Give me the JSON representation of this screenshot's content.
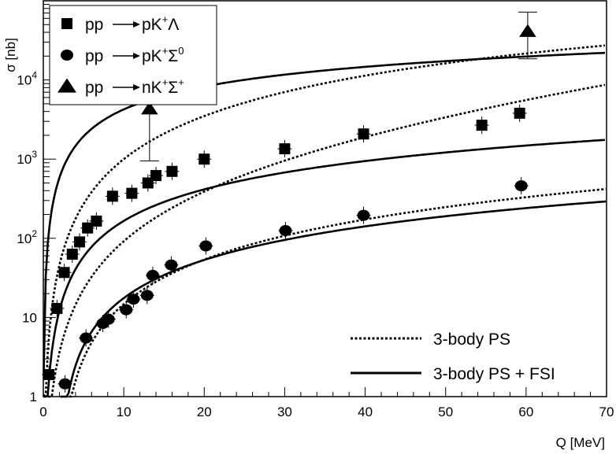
{
  "chart_data": {
    "type": "scatter",
    "title": "",
    "xlabel": "Q [MeV]",
    "ylabel": "σ [nb]",
    "xlim": [
      0,
      70
    ],
    "ylim": [
      1,
      100000
    ],
    "yscale": "log",
    "x_ticks": [
      "0",
      "10",
      "20",
      "30",
      "40",
      "50",
      "60",
      "70"
    ],
    "y_ticks": [
      {
        "value": 1,
        "label": "1"
      },
      {
        "value": 10,
        "label": "10"
      },
      {
        "value": 100,
        "label": "10",
        "sup": "2"
      },
      {
        "value": 1000,
        "label": "10",
        "sup": "3"
      },
      {
        "value": 10000,
        "label": "10",
        "sup": "4"
      }
    ],
    "grid": false,
    "legend_position": "top-left",
    "series": [
      {
        "name": "pp→pK⁺Λ",
        "reaction": {
          "lhs": "pp",
          "rhs": "pK",
          "sup1": "+",
          "rest": "Λ",
          "sup2": ""
        },
        "marker": "square",
        "points": [
          {
            "x": 0.7,
            "y": 1.9
          },
          {
            "x": 1.7,
            "y": 13
          },
          {
            "x": 2.6,
            "y": 37
          },
          {
            "x": 3.6,
            "y": 63
          },
          {
            "x": 4.5,
            "y": 90
          },
          {
            "x": 5.5,
            "y": 135
          },
          {
            "x": 6.6,
            "y": 165
          },
          {
            "x": 8.6,
            "y": 340
          },
          {
            "x": 11,
            "y": 370
          },
          {
            "x": 13,
            "y": 500
          },
          {
            "x": 14,
            "y": 620
          },
          {
            "x": 16,
            "y": 700
          },
          {
            "x": 20,
            "y": 1000
          },
          {
            "x": 30,
            "y": 1350
          },
          {
            "x": 39.8,
            "y": 2080
          },
          {
            "x": 54.5,
            "y": 2680
          },
          {
            "x": 59.2,
            "y": 3800
          }
        ]
      },
      {
        "name": "pp→pK⁺Σ⁰",
        "reaction": {
          "lhs": "pp",
          "rhs": "pK",
          "sup1": "+",
          "rest": "Σ",
          "sup2": "0"
        },
        "marker": "circle",
        "points": [
          {
            "x": 2.7,
            "y": 1.45
          },
          {
            "x": 5.3,
            "y": 5.5
          },
          {
            "x": 7.4,
            "y": 8.4
          },
          {
            "x": 8.1,
            "y": 9.5
          },
          {
            "x": 10.3,
            "y": 12.5
          },
          {
            "x": 11.2,
            "y": 17
          },
          {
            "x": 12.9,
            "y": 19
          },
          {
            "x": 13.6,
            "y": 34
          },
          {
            "x": 15.9,
            "y": 46
          },
          {
            "x": 20.2,
            "y": 80
          },
          {
            "x": 30.1,
            "y": 125
          },
          {
            "x": 39.8,
            "y": 195
          },
          {
            "x": 59.4,
            "y": 460
          }
        ]
      },
      {
        "name": "pp→nK⁺Σ⁺",
        "reaction": {
          "lhs": "pp",
          "rhs": "nK",
          "sup1": "+",
          "rest": "Σ",
          "sup2": "+"
        },
        "marker": "triangle",
        "points": [
          {
            "x": 13.2,
            "y": 4300,
            "ylo": 950,
            "yhi": 8200
          },
          {
            "x": 60.2,
            "y": 41000,
            "ylo": 18500,
            "yhi": 72000
          }
        ]
      }
    ],
    "curves": [
      {
        "label": "3-body PS",
        "style": "dotted"
      },
      {
        "label": "3-body PS + FSI",
        "style": "solid"
      }
    ]
  }
}
